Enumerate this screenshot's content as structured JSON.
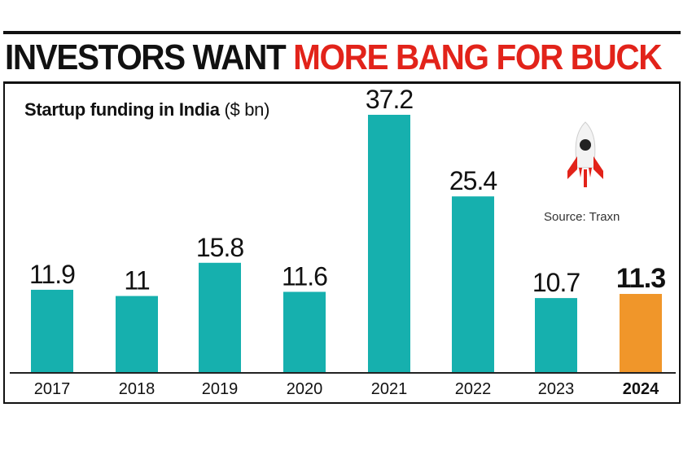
{
  "headline": {
    "part1": "INVESTORS WANT",
    "part2": "MORE BANG FOR BUCK"
  },
  "subtitle": {
    "main": "Startup funding in India",
    "unit": "($ bn)"
  },
  "source": "Source: Traxn",
  "colors": {
    "bar": "#16b0ae",
    "highlight": "#f0962a",
    "headline_red": "#e2231a",
    "text": "#111111"
  },
  "chart_data": {
    "type": "bar",
    "title": "Startup funding in India ($ bn)",
    "categories": [
      "2017",
      "2018",
      "2019",
      "2020",
      "2021",
      "2022",
      "2023",
      "2024"
    ],
    "values": [
      11.9,
      11,
      15.8,
      11.6,
      37.2,
      25.4,
      10.7,
      11.3
    ],
    "value_labels": [
      "11.9",
      "11",
      "15.8",
      "11.6",
      "37.2",
      "25.4",
      "10.7",
      "11.3"
    ],
    "highlight_category": "2024",
    "xlabel": "",
    "ylabel": "",
    "ylim": [
      0,
      37.2
    ],
    "grid": false,
    "legend": "none"
  }
}
